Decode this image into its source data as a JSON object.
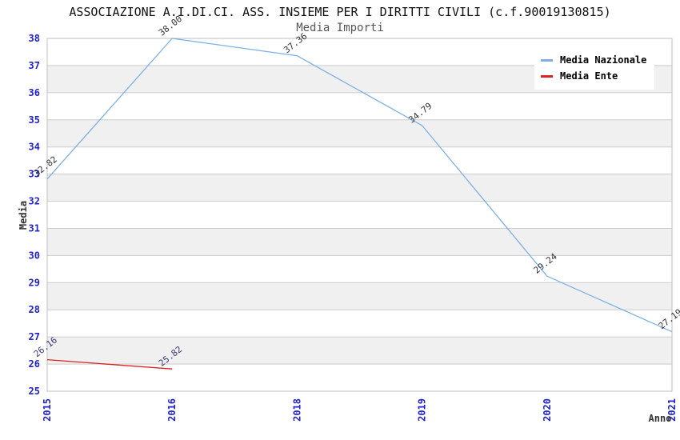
{
  "header": {
    "title": "ASSOCIAZIONE A.I.DI.CI. ASS. INSIEME PER I DIRITTI CIVILI (c.f.90019130815)",
    "subtitle": "Media Importi"
  },
  "legend": {
    "items": [
      {
        "label": "Media Nazionale",
        "color": "#7cb0e8"
      },
      {
        "label": "Media Ente",
        "color": "#dd2222"
      }
    ]
  },
  "axes": {
    "ylabel": "Media",
    "xlabel": "Anno"
  },
  "chart_data": {
    "type": "line",
    "title": "ASSOCIAZIONE A.I.DI.CI. ASS. INSIEME PER I DIRITTI CIVILI (c.f.90019130815)",
    "subtitle": "Media Importi",
    "xlabel": "Anno",
    "ylabel": "Media",
    "categories": [
      "2015",
      "2016",
      "2018",
      "2019",
      "2020",
      "2021"
    ],
    "series": [
      {
        "name": "Media Nazionale",
        "color": "#7cb0e8",
        "label_color": "#333333",
        "values": [
          32.82,
          38.0,
          37.36,
          34.79,
          29.24,
          27.19
        ],
        "labels": [
          "32.82",
          "38.00",
          "37.36",
          "34.79",
          "29.24",
          "27.19"
        ]
      },
      {
        "name": "Media Ente",
        "color": "#dd2222",
        "label_color": "#3a3a75",
        "values": [
          26.16,
          25.82
        ],
        "labels": [
          "26.16",
          "25.82"
        ]
      }
    ],
    "ylim": [
      25,
      38
    ],
    "y_tick_step": 1,
    "grid": true,
    "alternating_bands": true,
    "legend_position": "top-right",
    "colors": {
      "tick_label": "#2222cc",
      "band": "#f0f0f0",
      "gridline": "#cccccc",
      "plot_border": "#bfbfbf"
    }
  }
}
